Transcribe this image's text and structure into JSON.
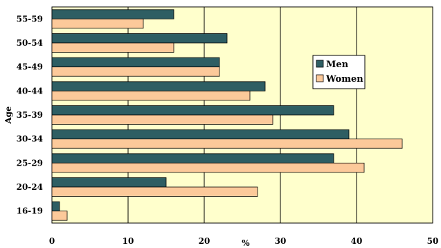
{
  "chart_data": {
    "type": "bar",
    "orientation": "horizontal",
    "categories": [
      "55-59",
      "50-54",
      "45-49",
      "40-44",
      "35-39",
      "30-34",
      "25-29",
      "20-24",
      "16-19"
    ],
    "series": [
      {
        "name": "Men",
        "color": "#2e5e63",
        "values": [
          16,
          23,
          22,
          28,
          37,
          39,
          37,
          15,
          1
        ]
      },
      {
        "name": "Women",
        "color": "#fcc99a",
        "values": [
          12,
          16,
          22,
          26,
          29,
          46,
          41,
          27,
          2
        ]
      }
    ],
    "xlabel": "%",
    "ylabel": "Age",
    "xlim": [
      0,
      50
    ],
    "xticks": [
      0,
      10,
      20,
      30,
      40,
      50
    ],
    "grid": "vertical",
    "legend": "right",
    "plot_background": "#ffffcc"
  }
}
